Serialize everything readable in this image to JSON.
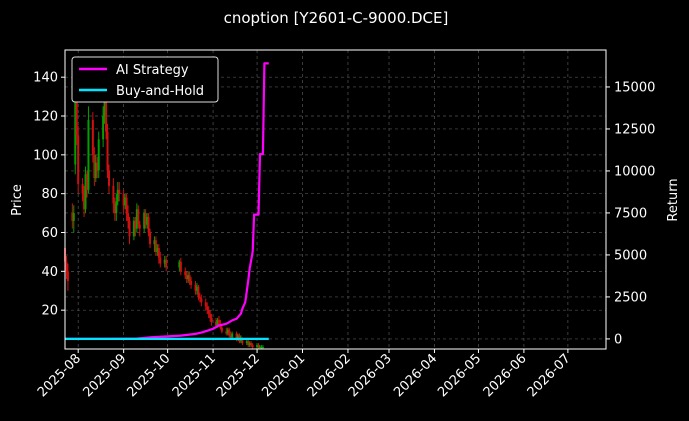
{
  "chart_data": {
    "type": "line",
    "title": "cnoption [Y2601-C-9000.DCE]",
    "ylabel": "Price",
    "y2label": "Return",
    "background": "#000000",
    "grid": true,
    "legend_position": "top-left",
    "x_ticks": [
      "2025-08",
      "2025-09",
      "2025-10",
      "2025-11",
      "2025-12",
      "2026-01",
      "2026-02",
      "2026-03",
      "2026-04",
      "2026-05",
      "2026-06",
      "2026-07"
    ],
    "xlim": [
      "2025-07-23",
      "2026-07-27"
    ],
    "ylim": [
      0,
      154
    ],
    "y_ticks": [
      20,
      40,
      60,
      80,
      100,
      120,
      140
    ],
    "y2lim": [
      -600,
      17200
    ],
    "y2_ticks": [
      0,
      2500,
      5000,
      7500,
      10000,
      12500,
      15000
    ],
    "series": [
      {
        "name": "AI Strategy",
        "axis": "right",
        "color": "#ff00ff",
        "x": [
          "2025-07-23",
          "2025-08-15",
          "2025-09-10",
          "2025-09-20",
          "2025-10-01",
          "2025-10-10",
          "2025-10-20",
          "2025-10-25",
          "2025-11-01",
          "2025-11-05",
          "2025-11-10",
          "2025-11-14",
          "2025-11-17",
          "2025-11-20",
          "2025-11-21",
          "2025-11-23",
          "2025-11-25",
          "2025-11-26",
          "2025-11-28",
          "2025-11-29",
          "2025-12-02",
          "2025-12-03",
          "2025-12-05",
          "2025-12-06",
          "2025-12-09"
        ],
        "values": [
          0,
          0,
          20,
          100,
          150,
          200,
          300,
          400,
          600,
          800,
          900,
          1100,
          1200,
          1500,
          1800,
          2200,
          3500,
          4200,
          5200,
          7400,
          7400,
          11000,
          11000,
          16400,
          16400
        ]
      },
      {
        "name": "Buy-and-Hold",
        "axis": "right",
        "color": "#00e5ff",
        "x": [
          "2025-07-23",
          "2025-12-09"
        ],
        "values": [
          0,
          0
        ]
      }
    ],
    "candles": {
      "up_color": "#00a000",
      "down_color": "#d01010",
      "date": [
        "2025-07-23",
        "2025-07-24",
        "2025-07-25",
        "2025-07-28",
        "2025-07-29",
        "2025-07-30",
        "2025-07-31",
        "2025-08-01",
        "2025-08-04",
        "2025-08-05",
        "2025-08-06",
        "2025-08-07",
        "2025-08-08",
        "2025-08-11",
        "2025-08-12",
        "2025-08-13",
        "2025-08-14",
        "2025-08-15",
        "2025-08-18",
        "2025-08-19",
        "2025-08-20",
        "2025-08-21",
        "2025-08-22",
        "2025-08-25",
        "2025-08-26",
        "2025-08-27",
        "2025-08-28",
        "2025-08-29",
        "2025-09-01",
        "2025-09-02",
        "2025-09-03",
        "2025-09-04",
        "2025-09-05",
        "2025-09-08",
        "2025-09-09",
        "2025-09-10",
        "2025-09-11",
        "2025-09-12",
        "2025-09-15",
        "2025-09-16",
        "2025-09-17",
        "2025-09-18",
        "2025-09-19",
        "2025-09-22",
        "2025-09-23",
        "2025-09-24",
        "2025-09-25",
        "2025-09-26",
        "2025-09-29",
        "2025-09-30",
        "2025-10-09",
        "2025-10-10",
        "2025-10-13",
        "2025-10-14",
        "2025-10-15",
        "2025-10-16",
        "2025-10-17",
        "2025-10-20",
        "2025-10-21",
        "2025-10-22",
        "2025-10-23",
        "2025-10-24",
        "2025-10-27",
        "2025-10-28",
        "2025-10-29",
        "2025-10-30",
        "2025-10-31",
        "2025-11-03",
        "2025-11-04",
        "2025-11-05",
        "2025-11-06",
        "2025-11-07",
        "2025-11-10",
        "2025-11-11",
        "2025-11-12",
        "2025-11-13",
        "2025-11-14",
        "2025-11-17",
        "2025-11-18",
        "2025-11-19",
        "2025-11-20",
        "2025-11-21",
        "2025-11-24",
        "2025-11-25",
        "2025-11-26",
        "2025-11-27",
        "2025-11-28",
        "2025-12-01",
        "2025-12-02",
        "2025-12-03",
        "2025-12-04",
        "2025-12-05"
      ],
      "open": [
        52,
        45,
        40,
        70,
        66,
        95,
        128,
        110,
        85,
        80,
        72,
        90,
        82,
        118,
        100,
        88,
        96,
        92,
        108,
        120,
        130,
        112,
        92,
        84,
        75,
        70,
        76,
        82,
        80,
        74,
        78,
        70,
        66,
        58,
        66,
        62,
        72,
        64,
        62,
        70,
        64,
        68,
        60,
        54,
        56,
        50,
        52,
        47,
        44,
        46,
        42,
        45,
        40,
        38,
        36,
        38,
        35,
        33,
        30,
        32,
        27,
        26,
        24,
        22,
        20,
        18,
        16,
        14,
        12,
        15,
        13,
        11,
        9,
        8,
        10,
        7,
        6,
        8,
        5,
        7,
        4,
        5,
        3,
        4,
        2,
        3,
        2,
        1,
        2,
        1,
        1,
        1
      ],
      "close": [
        45,
        40,
        35,
        66,
        70,
        128,
        110,
        85,
        80,
        72,
        90,
        82,
        118,
        100,
        88,
        96,
        92,
        108,
        120,
        130,
        112,
        92,
        84,
        75,
        70,
        76,
        82,
        80,
        74,
        78,
        70,
        66,
        58,
        66,
        62,
        72,
        64,
        62,
        70,
        64,
        68,
        60,
        54,
        56,
        50,
        52,
        47,
        44,
        46,
        42,
        45,
        40,
        38,
        36,
        38,
        35,
        33,
        30,
        32,
        27,
        26,
        24,
        22,
        20,
        18,
        16,
        14,
        12,
        15,
        13,
        11,
        9,
        8,
        10,
        7,
        6,
        8,
        5,
        7,
        4,
        5,
        3,
        4,
        2,
        3,
        2,
        1,
        2,
        1,
        1,
        1,
        1
      ],
      "high": [
        56,
        48,
        44,
        75,
        74,
        148,
        135,
        115,
        88,
        84,
        94,
        92,
        125,
        122,
        104,
        100,
        99,
        112,
        125,
        138,
        134,
        116,
        95,
        88,
        78,
        80,
        86,
        86,
        82,
        80,
        80,
        74,
        68,
        68,
        68,
        75,
        74,
        66,
        72,
        72,
        70,
        70,
        62,
        58,
        58,
        54,
        54,
        50,
        48,
        48,
        46,
        47,
        42,
        40,
        40,
        40,
        37,
        35,
        34,
        33,
        29,
        28,
        26,
        24,
        22,
        20,
        18,
        16,
        16,
        17,
        15,
        13,
        11,
        11,
        11,
        9,
        9,
        9,
        8,
        8,
        7,
        6,
        5,
        5,
        4,
        4,
        3,
        3,
        3,
        2,
        2,
        2
      ],
      "low": [
        42,
        36,
        30,
        62,
        60,
        90,
        105,
        80,
        76,
        68,
        70,
        78,
        80,
        96,
        84,
        86,
        88,
        88,
        104,
        116,
        108,
        88,
        80,
        70,
        66,
        66,
        74,
        76,
        70,
        72,
        66,
        62,
        54,
        56,
        58,
        60,
        62,
        58,
        60,
        62,
        62,
        58,
        52,
        50,
        48,
        48,
        44,
        42,
        42,
        40,
        40,
        38,
        36,
        34,
        34,
        33,
        31,
        28,
        28,
        25,
        24,
        22,
        20,
        18,
        16,
        14,
        12,
        11,
        11,
        12,
        10,
        8,
        7,
        7,
        6,
        5,
        5,
        4,
        4,
        3,
        3,
        2,
        2,
        1,
        1,
        1,
        0,
        0,
        0,
        0,
        0,
        0
      ]
    }
  }
}
